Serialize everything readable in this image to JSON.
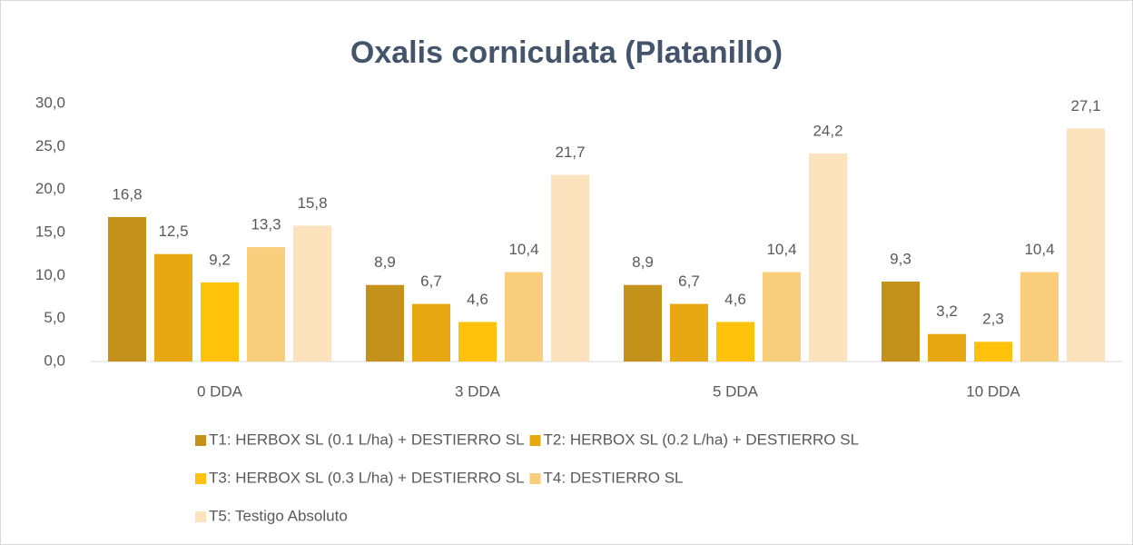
{
  "chart_data": {
    "type": "bar",
    "title": "Oxalis corniculata (Platanillo)",
    "categories": [
      "0 DDA",
      "3 DDA",
      "5 DDA",
      "10 DDA"
    ],
    "series": [
      {
        "name": "T1: HERBOX SL (0.1 L/ha) + DESTIERRO SL",
        "color": "#c4921a",
        "values": [
          16.8,
          8.9,
          8.9,
          9.3
        ],
        "value_labels": [
          "16,8",
          "8,9",
          "8,9",
          "9,3"
        ]
      },
      {
        "name": "T2: HERBOX SL (0.2 L/ha) + DESTIERRO SL",
        "color": "#e8a812",
        "values": [
          12.5,
          6.7,
          6.7,
          3.2
        ],
        "value_labels": [
          "12,5",
          "6,7",
          "6,7",
          "3,2"
        ]
      },
      {
        "name": "T3: HERBOX SL (0.3 L/ha) + DESTIERRO SL",
        "color": "#ffc20a",
        "values": [
          9.2,
          4.6,
          4.6,
          2.3
        ],
        "value_labels": [
          "9,2",
          "4,6",
          "4,6",
          "2,3"
        ]
      },
      {
        "name": "T4: DESTIERRO SL",
        "color": "#f8cd7c",
        "values": [
          13.3,
          10.4,
          10.4,
          10.4
        ],
        "value_labels": [
          "13,3",
          "10,4",
          "10,4",
          "10,4"
        ]
      },
      {
        "name": "T5: Testigo Absoluto",
        "color": "#fce3bd",
        "values": [
          15.8,
          21.7,
          24.2,
          27.1
        ],
        "value_labels": [
          "15,8",
          "21,7",
          "24,2",
          "27,1"
        ]
      }
    ],
    "ylim": [
      0,
      30
    ],
    "yticks": [
      {
        "value": 0,
        "label": "0,0"
      },
      {
        "value": 5,
        "label": "5,0"
      },
      {
        "value": 10,
        "label": "10,0"
      },
      {
        "value": 15,
        "label": "15,0"
      },
      {
        "value": 20,
        "label": "20,0"
      },
      {
        "value": 25,
        "label": "25,0"
      },
      {
        "value": 30,
        "label": "30,0"
      }
    ],
    "grid": false
  }
}
